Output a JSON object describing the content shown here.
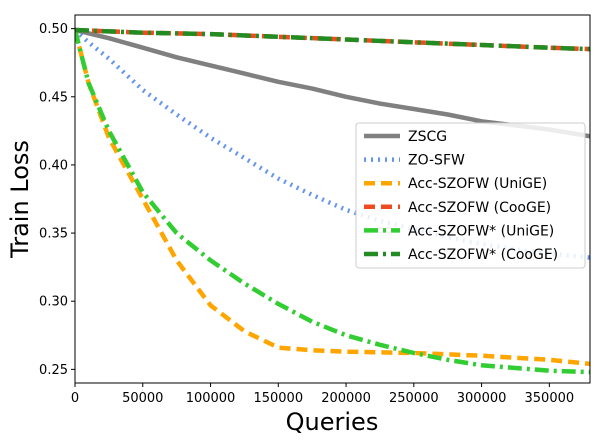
{
  "chart_data": {
    "type": "line",
    "title": "",
    "xlabel": "Queries",
    "ylabel": "Train Loss",
    "xlim": [
      0,
      380000
    ],
    "ylim": [
      0.24,
      0.51
    ],
    "xticks": [
      0,
      50000,
      100000,
      150000,
      200000,
      250000,
      300000,
      350000
    ],
    "xtick_labels": [
      "0",
      "50000",
      "100000",
      "150000",
      "200000",
      "250000",
      "300000",
      "350000"
    ],
    "yticks": [
      0.25,
      0.3,
      0.35,
      0.4,
      0.45,
      0.5
    ],
    "ytick_labels": [
      "0.25",
      "0.30",
      "0.35",
      "0.40",
      "0.45",
      "0.50"
    ],
    "grid": false,
    "legend_position": "center-right",
    "series": [
      {
        "name": "ZSCG",
        "color": "#808080",
        "dash": "solid",
        "width": 4.5,
        "x": [
          0,
          25000,
          50000,
          75000,
          100000,
          125000,
          150000,
          175000,
          200000,
          225000,
          250000,
          275000,
          300000,
          325000,
          350000,
          380000
        ],
        "y": [
          0.499,
          0.493,
          0.486,
          0.479,
          0.473,
          0.467,
          0.461,
          0.456,
          0.45,
          0.445,
          0.441,
          0.437,
          0.432,
          0.429,
          0.426,
          0.421
        ]
      },
      {
        "name": "ZO-SFW",
        "color": "#6495ED",
        "dash": "dotted",
        "width": 4.5,
        "x": [
          0,
          10000,
          25000,
          50000,
          75000,
          100000,
          125000,
          150000,
          175000,
          200000,
          225000,
          250000,
          275000,
          300000,
          325000,
          350000,
          380000
        ],
        "y": [
          0.499,
          0.49,
          0.478,
          0.455,
          0.437,
          0.42,
          0.405,
          0.39,
          0.378,
          0.367,
          0.359,
          0.353,
          0.347,
          0.342,
          0.338,
          0.335,
          0.332
        ]
      },
      {
        "name": "Acc-SZOFW (UniGE)",
        "color": "#FFA500",
        "dash": "dashed",
        "width": 4.5,
        "x": [
          0,
          10000,
          25000,
          50000,
          75000,
          100000,
          125000,
          150000,
          175000,
          200000,
          250000,
          300000,
          350000,
          380000
        ],
        "y": [
          0.499,
          0.46,
          0.42,
          0.375,
          0.33,
          0.297,
          0.278,
          0.266,
          0.264,
          0.263,
          0.262,
          0.26,
          0.257,
          0.254
        ]
      },
      {
        "name": "Acc-SZOFW (CooGE)",
        "color": "#EE4B1E",
        "dash": "dashed",
        "width": 4.5,
        "x": [
          0,
          50000,
          100000,
          150000,
          200000,
          250000,
          300000,
          350000,
          380000
        ],
        "y": [
          0.499,
          0.497,
          0.496,
          0.494,
          0.492,
          0.49,
          0.488,
          0.486,
          0.485
        ]
      },
      {
        "name": "Acc-SZOFW* (UniGE)",
        "color": "#32CD32",
        "dash": "dashdot",
        "width": 4.5,
        "x": [
          0,
          10000,
          25000,
          50000,
          75000,
          100000,
          125000,
          150000,
          175000,
          200000,
          225000,
          250000,
          275000,
          300000,
          325000,
          350000,
          380000
        ],
        "y": [
          0.499,
          0.46,
          0.425,
          0.38,
          0.35,
          0.33,
          0.313,
          0.298,
          0.285,
          0.275,
          0.268,
          0.262,
          0.257,
          0.253,
          0.251,
          0.249,
          0.248
        ]
      },
      {
        "name": "Acc-SZOFW* (CooGE)",
        "color": "#228B22",
        "dash": "dashdot",
        "width": 4.5,
        "x": [
          0,
          50000,
          100000,
          150000,
          200000,
          250000,
          300000,
          350000,
          380000
        ],
        "y": [
          0.499,
          0.497,
          0.496,
          0.494,
          0.492,
          0.49,
          0.488,
          0.486,
          0.485
        ]
      }
    ]
  }
}
